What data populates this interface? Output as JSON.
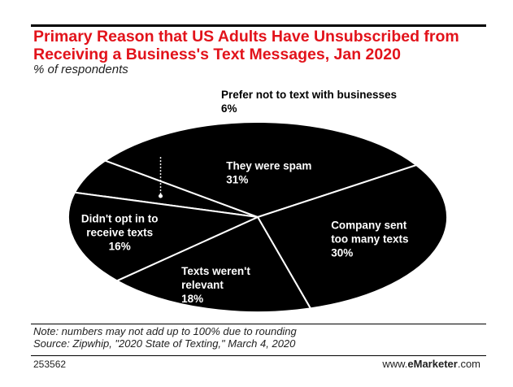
{
  "header": {
    "title": "Primary Reason that US Adults Have Unsubscribed from Receiving a Business's Text Messages, Jan 2020",
    "subtitle": "% of respondents"
  },
  "chart_data": {
    "type": "pie",
    "categories": [
      "Prefer not to text with businesses",
      "They were spam",
      "Company sent too many texts",
      "Texts weren't relevant",
      "Didn't opt in to receive texts"
    ],
    "values": [
      6,
      31,
      30,
      18,
      16
    ],
    "unit": "%",
    "labels": [
      {
        "lines": [
          "Prefer not to text with businesses"
        ],
        "value": "6%"
      },
      {
        "lines": [
          "They were spam"
        ],
        "value": "31%"
      },
      {
        "lines": [
          "Company sent",
          "too many texts"
        ],
        "value": "30%"
      },
      {
        "lines": [
          "Texts weren't",
          "relevant"
        ],
        "value": "18%"
      },
      {
        "lines": [
          "Didn't opt in to",
          "receive texts"
        ],
        "value": "16%"
      }
    ],
    "colors": {
      "slice": "#000000",
      "border": "#ffffff",
      "label": "#ffffff",
      "outside_label": "#000000"
    }
  },
  "footer": {
    "note": "Note: numbers may not add up to 100% due to rounding",
    "source": "Source: Zipwhip, \"2020 State of Texting,\" March 4, 2020",
    "chart_id": "253562",
    "brand_prefix": "www.",
    "brand_name": "eMarketer",
    "brand_suffix": ".com"
  }
}
